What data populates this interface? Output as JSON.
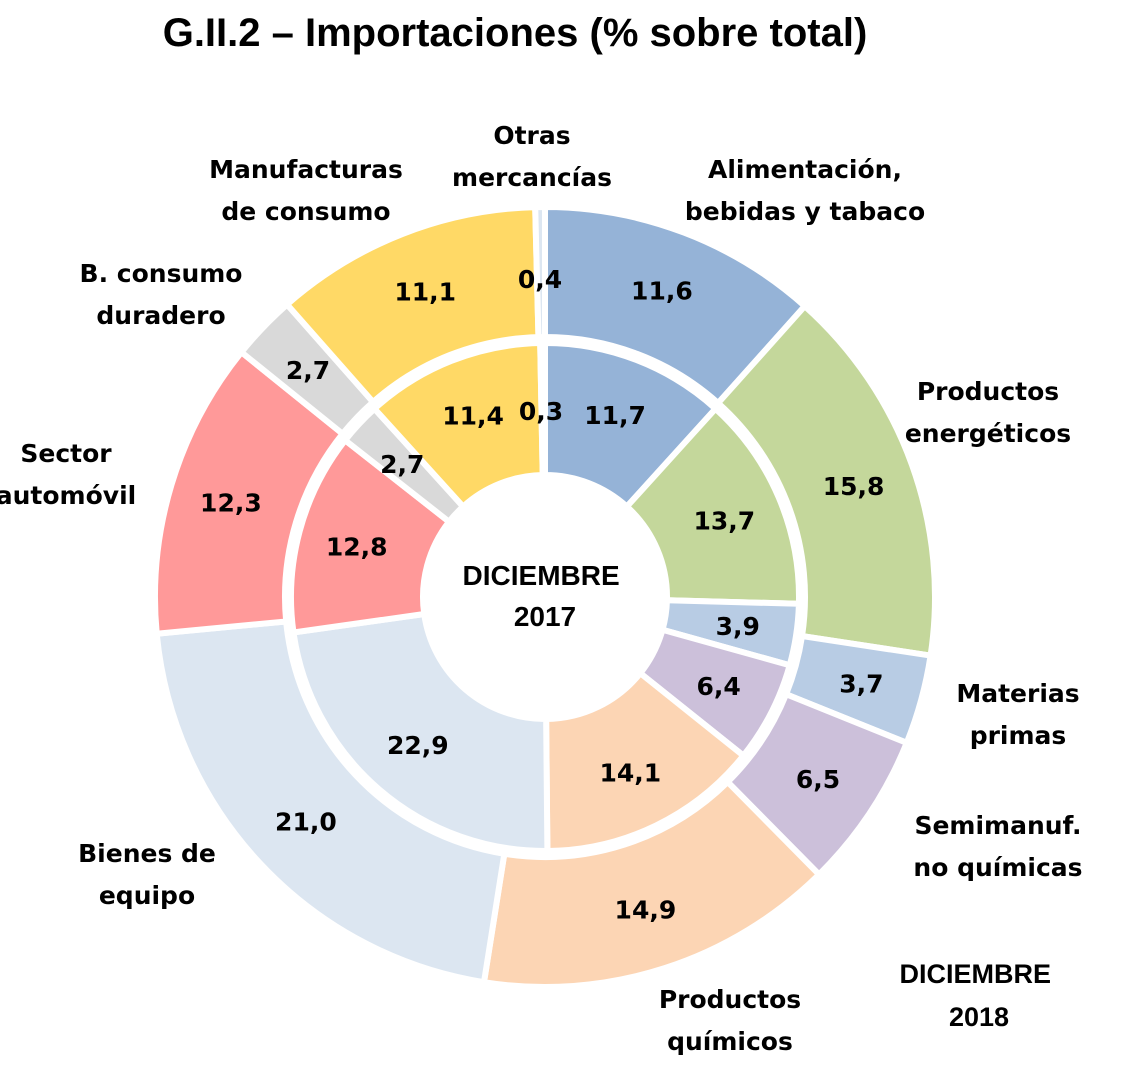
{
  "chart_data": {
    "type": "pie",
    "title": "G.II.2 – Importaciones (% sobre total)",
    "categories": [
      [
        "Alimentación,",
        "bebidas y tabaco"
      ],
      [
        "Productos",
        "energéticos"
      ],
      [
        "Materias",
        "primas"
      ],
      [
        "Semimanuf.",
        "no químicas"
      ],
      [
        "Productos",
        "químicos"
      ],
      [
        "Bienes de",
        "equipo"
      ],
      [
        "Sector",
        "automóvil"
      ],
      [
        "B. consumo",
        "duradero"
      ],
      [
        "Manufacturas",
        "de consumo"
      ],
      [
        "Otras",
        "mercancías"
      ]
    ],
    "colors": [
      "#95b3d7",
      "#c4d79b",
      "#b8cce4",
      "#ccc0da",
      "#fcd5b4",
      "#dce6f1",
      "#ff9999",
      "#d9d9d9",
      "#ffd966",
      "#dce6f1"
    ],
    "series": [
      {
        "name": [
          "DICIEMBRE",
          "2017"
        ],
        "ring": "inner",
        "values": [
          11.7,
          13.7,
          3.9,
          6.4,
          14.1,
          22.9,
          12.8,
          2.7,
          11.4,
          0.3
        ],
        "labels": [
          "11,7",
          "13,7",
          "3,9",
          "6,4",
          "14,1",
          "22,9",
          "12,8",
          "2,7",
          "11,4",
          "0,3"
        ]
      },
      {
        "name": [
          "DICIEMBRE",
          "2018"
        ],
        "ring": "outer",
        "values": [
          11.6,
          15.8,
          3.7,
          6.5,
          14.9,
          21.0,
          12.3,
          2.7,
          11.1,
          0.4
        ],
        "labels": [
          "11,6",
          "15,8",
          "3,7",
          "6,5",
          "14,9",
          "21,0",
          "12,3",
          "2,7",
          "11,1",
          "0,4"
        ]
      }
    ]
  }
}
